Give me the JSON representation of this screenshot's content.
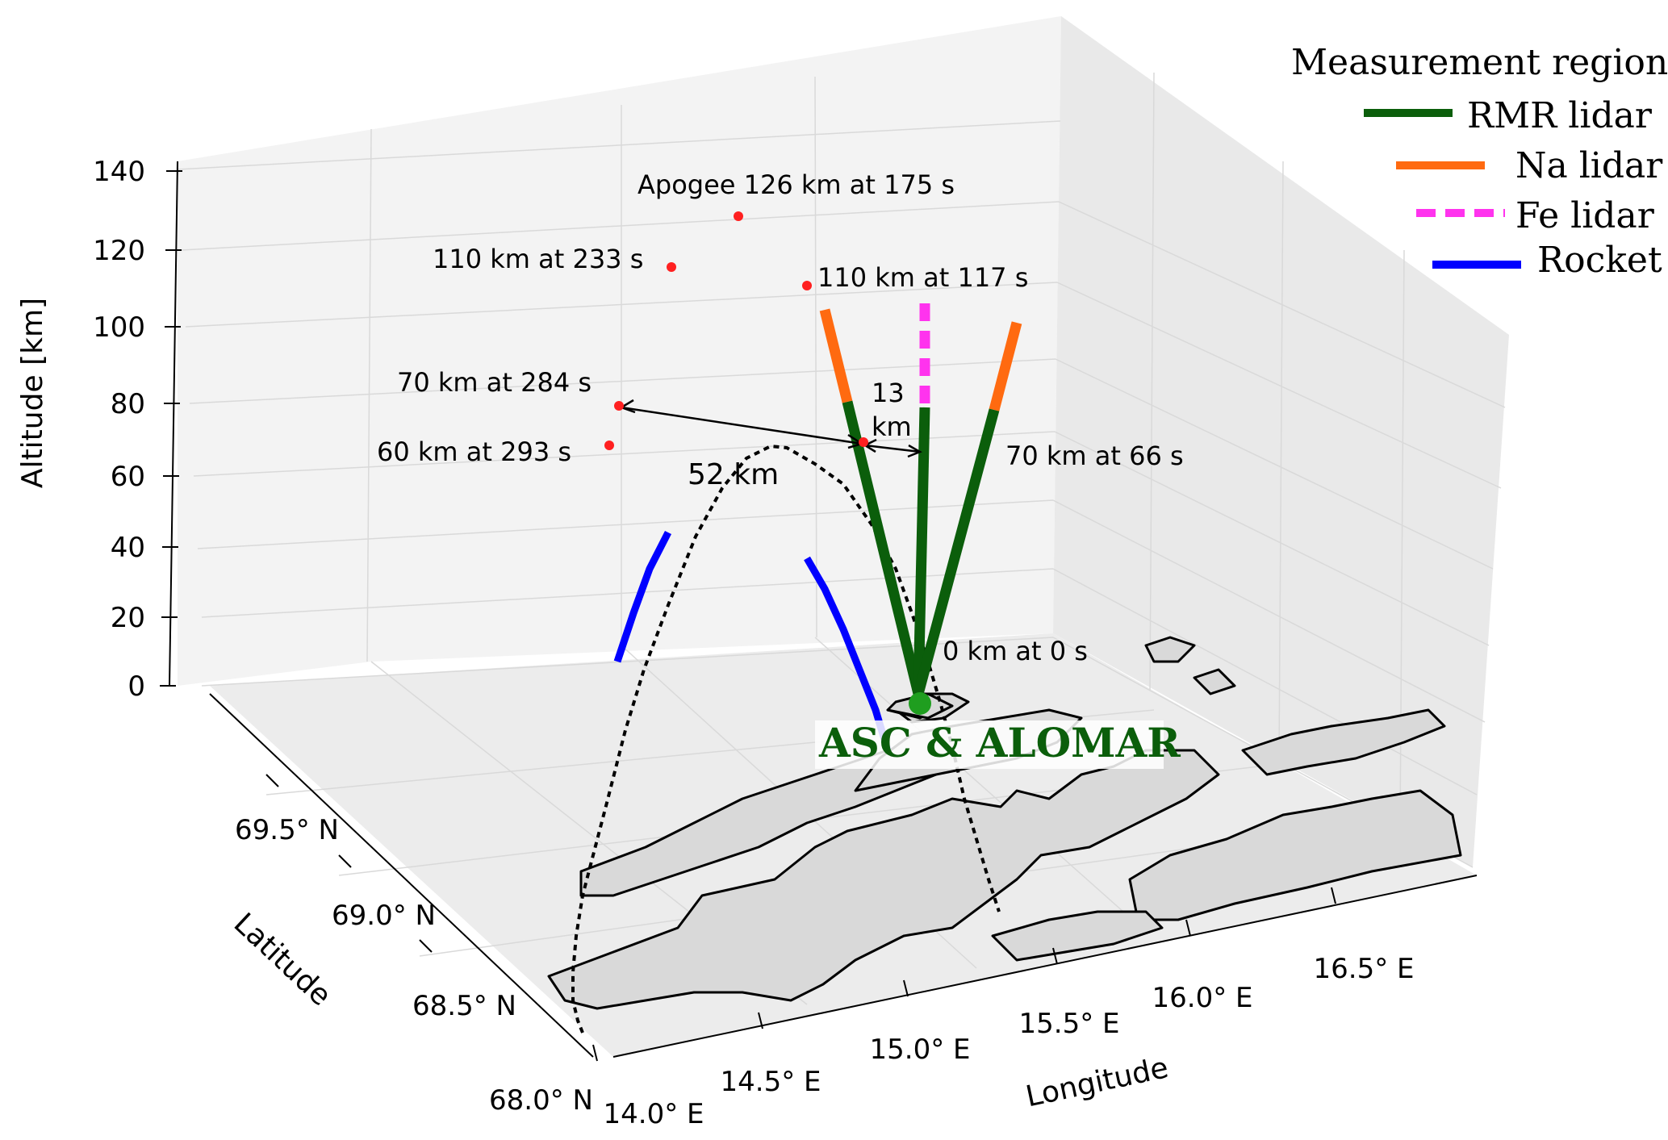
{
  "chart_data": {
    "type": "3d-line",
    "xlabel": "Longitude",
    "ylabel": "Latitude",
    "zlabel": "Altitude [km]",
    "xlim": [
      14.0,
      16.5
    ],
    "ylim": [
      68.0,
      69.5
    ],
    "zlim": [
      0,
      140
    ],
    "x_ticks": [
      "14.0° E",
      "14.5° E",
      "15.0° E",
      "15.5° E",
      "16.0° E",
      "16.5° E"
    ],
    "y_ticks": [
      "68.0° N",
      "68.5° N",
      "69.0° N",
      "69.5° N"
    ],
    "z_ticks": [
      "0",
      "20",
      "40",
      "60",
      "80",
      "100",
      "120",
      "140"
    ],
    "grid": true,
    "legend": {
      "title": "Measurement regions",
      "position": "top-right",
      "entries": [
        {
          "label": "RMR lidar",
          "color": "#0b5e0b",
          "style": "solid"
        },
        {
          "label": "Na lidar",
          "color": "#ff6a10",
          "style": "solid"
        },
        {
          "label": "Fe lidar",
          "color": "#ff33ee",
          "style": "dashed"
        },
        {
          "label": "Rocket",
          "color": "#0000ff",
          "style": "solid"
        }
      ]
    },
    "site": {
      "label": "ASC & ALOMAR",
      "color": "#1f9e1f"
    },
    "rocket_trajectory": {
      "color": "#000000",
      "style": "dotted",
      "marker_color": "#ff2020",
      "points": [
        {
          "time_s": 0,
          "altitude_km": 0,
          "label": "0 km at 0 s"
        },
        {
          "time_s": 66,
          "altitude_km": 70,
          "label": "70 km at 66 s"
        },
        {
          "time_s": 117,
          "altitude_km": 110,
          "label": "110 km at 117 s"
        },
        {
          "time_s": 175,
          "altitude_km": 126,
          "label": "Apogee 126 km at 175 s"
        },
        {
          "time_s": 233,
          "altitude_km": 110,
          "label": "110 km at 233 s"
        },
        {
          "time_s": 284,
          "altitude_km": 70,
          "label": "70 km at 284 s"
        },
        {
          "time_s": 293,
          "altitude_km": 60,
          "label": "60 km at 293 s"
        }
      ]
    },
    "distance_annotations": [
      {
        "label": "52 km",
        "distance_km": 52
      },
      {
        "label": "13\nkm",
        "distance_km": 13
      }
    ],
    "lidar_beams": [
      {
        "name": "RMR lidar",
        "altitude_range_km": [
          0,
          80
        ]
      },
      {
        "name": "Na lidar",
        "altitude_range_km": [
          80,
          105
        ]
      },
      {
        "name": "Fe lidar",
        "altitude_range_km": [
          80,
          105
        ]
      }
    ]
  }
}
